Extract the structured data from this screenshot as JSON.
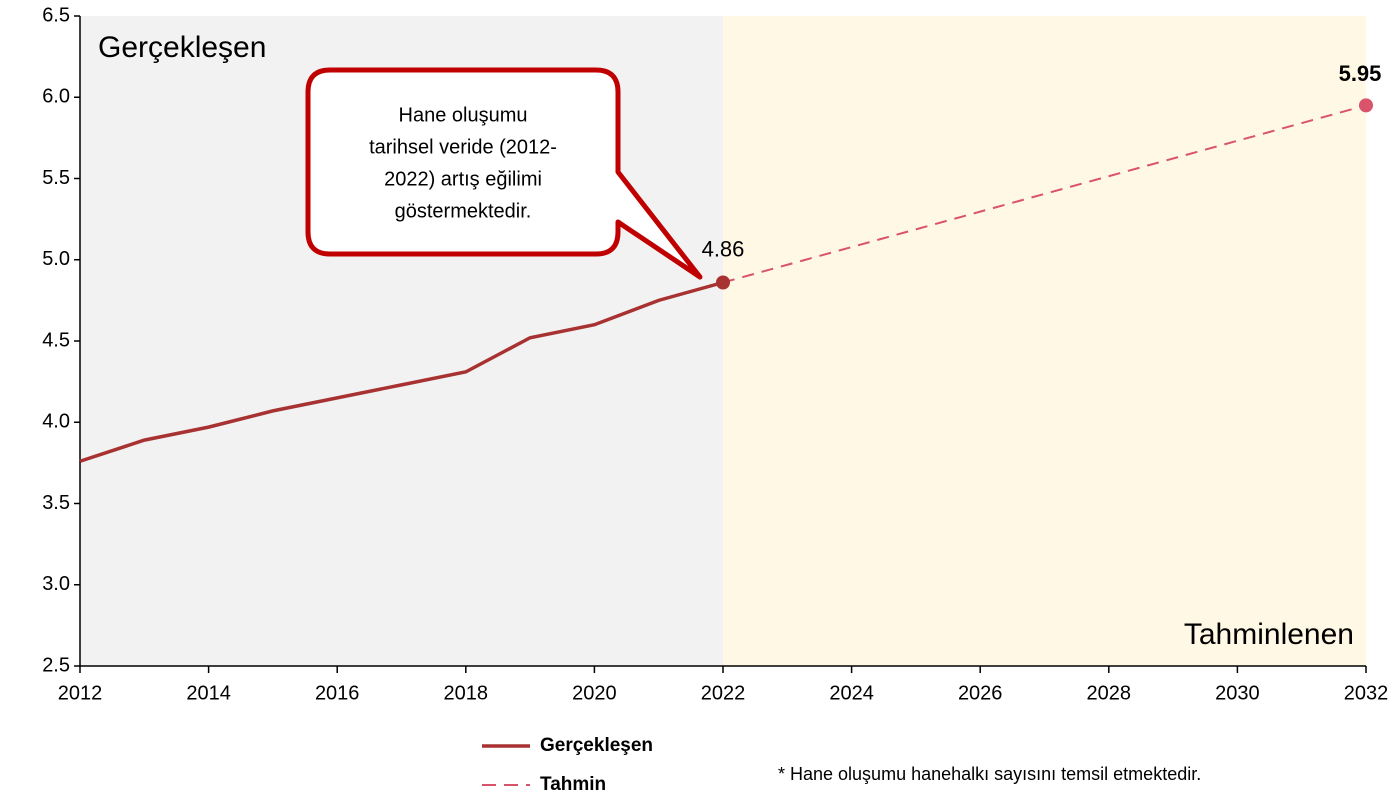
{
  "chart_data": {
    "type": "line",
    "xlim": [
      2012,
      2032
    ],
    "xticks": [
      2012,
      2014,
      2016,
      2018,
      2020,
      2022,
      2024,
      2026,
      2028,
      2030,
      2032
    ],
    "ylim": [
      2.5,
      6.5
    ],
    "yticks": [
      6.5,
      {
        "value": 6,
        "label": "6.0"
      },
      5.5,
      {
        "value": 5,
        "label": "5.0"
      },
      4.5,
      {
        "value": 4,
        "label": "4.0"
      },
      3.5,
      {
        "value": 3,
        "label": "3.0"
      },
      2.5
    ],
    "regions": [
      {
        "label": "Gerçekleşen",
        "from": 2012,
        "to": 2022,
        "color": "#f2f2f2"
      },
      {
        "label": "Tahminlenen",
        "from": 2022,
        "to": 2032,
        "color": "#fff8e5"
      }
    ],
    "series": [
      {
        "name": "Gerçekleşen",
        "color": "#a83232",
        "dashed": false,
        "x": [
          2012,
          2013,
          2014,
          2015,
          2016,
          2017,
          2018,
          2019,
          2020,
          2021,
          2022
        ],
        "values": [
          3.76,
          3.89,
          3.97,
          4.07,
          4.15,
          4.23,
          4.31,
          4.52,
          4.6,
          4.75,
          4.86
        ]
      },
      {
        "name": "Tahmin",
        "color": "#d9536a",
        "dashed": true,
        "x": [
          2022,
          2032
        ],
        "values": [
          4.86,
          5.95
        ]
      }
    ],
    "callout": [
      "Hane oluşumu",
      "tarihsel veride (2012-",
      "2022) artış eğilimi",
      "göstermektedir."
    ],
    "footnote": "* Hane oluşumu hanehalkı sayısını temsil etmektedir."
  }
}
